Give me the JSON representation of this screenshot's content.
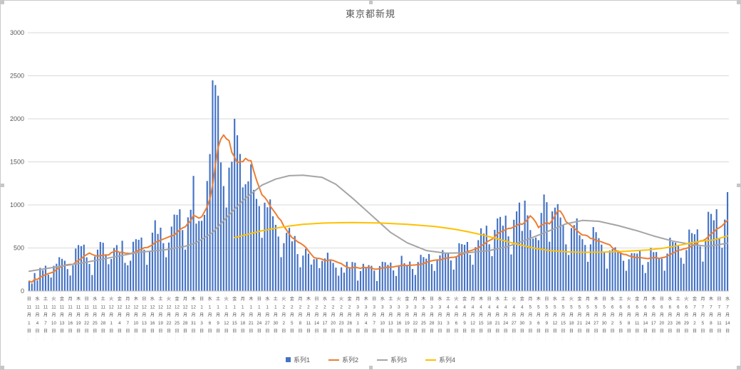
{
  "title": "東京都新規",
  "legend": [
    {
      "label": "系列1",
      "color": "#4472C4",
      "marker": "bar"
    },
    {
      "label": "系列2",
      "color": "#ED7D31",
      "marker": "line"
    },
    {
      "label": "系列3",
      "color": "#A5A5A5",
      "marker": "line"
    },
    {
      "label": "系列4",
      "color": "#FFC000",
      "marker": "line"
    }
  ],
  "chart_data": {
    "type": "bar",
    "combo": "daily bars (系列1) with three overlay lines (系列2/系列3/系列4)",
    "title": "東京都新規",
    "grid": "horizontal gridlines on",
    "legend_position": "bottom center",
    "y_axis": {
      "min": 0,
      "max": 3000,
      "step": 500,
      "tick_labels": [
        "0",
        "500",
        "1000",
        "1500",
        "2000",
        "2500",
        "3000"
      ]
    },
    "x_axis": {
      "unit": "day",
      "n_points": 256,
      "tick_interval_days": 3,
      "tick_label_format": "weekday + M月D日 (vertical stacked text)",
      "ticks": [
        [
          "日",
          "11",
          "1"
        ],
        [
          "水",
          "11",
          "4"
        ],
        [
          "土",
          "11",
          "7"
        ],
        [
          "火",
          "11",
          "10"
        ],
        [
          "金",
          "11",
          "13"
        ],
        [
          "月",
          "11",
          "16"
        ],
        [
          "木",
          "11",
          "19"
        ],
        [
          "日",
          "11",
          "22"
        ],
        [
          "水",
          "11",
          "25"
        ],
        [
          "土",
          "11",
          "28"
        ],
        [
          "火",
          "12",
          "1"
        ],
        [
          "金",
          "12",
          "4"
        ],
        [
          "月",
          "12",
          "7"
        ],
        [
          "木",
          "12",
          "10"
        ],
        [
          "日",
          "12",
          "13"
        ],
        [
          "水",
          "12",
          "16"
        ],
        [
          "土",
          "12",
          "19"
        ],
        [
          "火",
          "12",
          "22"
        ],
        [
          "金",
          "12",
          "25"
        ],
        [
          "月",
          "12",
          "28"
        ],
        [
          "木",
          "12",
          "31"
        ],
        [
          "日",
          "1",
          "3"
        ],
        [
          "水",
          "1",
          "6"
        ],
        [
          "土",
          "1",
          "9"
        ],
        [
          "火",
          "1",
          "12"
        ],
        [
          "金",
          "1",
          "15"
        ],
        [
          "月",
          "1",
          "18"
        ],
        [
          "木",
          "1",
          "21"
        ],
        [
          "日",
          "1",
          "24"
        ],
        [
          "水",
          "1",
          "27"
        ],
        [
          "土",
          "1",
          "30"
        ],
        [
          "火",
          "2",
          "2"
        ],
        [
          "金",
          "2",
          "5"
        ],
        [
          "月",
          "2",
          "8"
        ],
        [
          "木",
          "2",
          "11"
        ],
        [
          "日",
          "2",
          "14"
        ],
        [
          "水",
          "2",
          "17"
        ],
        [
          "土",
          "2",
          "20"
        ],
        [
          "火",
          "2",
          "23"
        ],
        [
          "金",
          "2",
          "26"
        ],
        [
          "月",
          "3",
          "1"
        ],
        [
          "木",
          "3",
          "4"
        ],
        [
          "日",
          "3",
          "7"
        ],
        [
          "水",
          "3",
          "10"
        ],
        [
          "土",
          "3",
          "13"
        ],
        [
          "火",
          "3",
          "16"
        ],
        [
          "金",
          "3",
          "19"
        ],
        [
          "月",
          "3",
          "22"
        ],
        [
          "木",
          "3",
          "25"
        ],
        [
          "日",
          "3",
          "28"
        ],
        [
          "水",
          "3",
          "31"
        ],
        [
          "土",
          "4",
          "3"
        ],
        [
          "火",
          "4",
          "6"
        ],
        [
          "金",
          "4",
          "9"
        ],
        [
          "月",
          "4",
          "12"
        ],
        [
          "木",
          "4",
          "15"
        ],
        [
          "日",
          "4",
          "18"
        ],
        [
          "水",
          "4",
          "21"
        ],
        [
          "土",
          "4",
          "24"
        ],
        [
          "火",
          "4",
          "27"
        ],
        [
          "金",
          "4",
          "30"
        ],
        [
          "月",
          "5",
          "3"
        ],
        [
          "木",
          "5",
          "6"
        ],
        [
          "日",
          "5",
          "9"
        ],
        [
          "水",
          "5",
          "12"
        ],
        [
          "土",
          "5",
          "15"
        ],
        [
          "火",
          "5",
          "18"
        ],
        [
          "金",
          "5",
          "21"
        ],
        [
          "月",
          "5",
          "24"
        ],
        [
          "木",
          "5",
          "27"
        ],
        [
          "日",
          "5",
          "30"
        ],
        [
          "水",
          "6",
          "2"
        ],
        [
          "土",
          "6",
          "5"
        ],
        [
          "火",
          "6",
          "8"
        ],
        [
          "金",
          "6",
          "11"
        ],
        [
          "月",
          "6",
          "14"
        ],
        [
          "木",
          "6",
          "17"
        ],
        [
          "日",
          "6",
          "20"
        ],
        [
          "水",
          "6",
          "23"
        ],
        [
          "土",
          "6",
          "26"
        ],
        [
          "火",
          "6",
          "29"
        ],
        [
          "金",
          "7",
          "2"
        ],
        [
          "月",
          "7",
          "5"
        ],
        [
          "木",
          "7",
          "8"
        ],
        [
          "日",
          "7",
          "11"
        ],
        [
          "水",
          "7",
          "14"
        ]
      ]
    },
    "series": [
      {
        "name": "系列1",
        "type": "bar",
        "color": "#4472C4",
        "values": [
          116,
          87,
          209,
          122,
          269,
          242,
          294,
          189,
          157,
          293,
          317,
          393,
          374,
          352,
          255,
          180,
          298,
          493,
          534,
          522,
          539,
          391,
          314,
          186,
          401,
          481,
          570,
          561,
          418,
          311,
          372,
          500,
          533,
          449,
          584,
          327,
          299,
          352,
          572,
          602,
          595,
          621,
          480,
          305,
          460,
          678,
          822,
          664,
          736,
          556,
          392,
          563,
          748,
          888,
          884,
          949,
          708,
          481,
          856,
          944,
          1337,
          783,
          814,
          816,
          884,
          1278,
          1591,
          2447,
          2392,
          2268,
          1494,
          1219,
          970,
          1433,
          1502,
          2001,
          1809,
          1592,
          1204,
          1240,
          1274,
          1471,
          1175,
          1070,
          986,
          618,
          1026,
          973,
          1064,
          868,
          769,
          633,
          393,
          556,
          676,
          734,
          577,
          639,
          429,
          276,
          412,
          491,
          434,
          307,
          369,
          371,
          266,
          350,
          378,
          445,
          353,
          327,
          272,
          178,
          275,
          213,
          340,
          270,
          337,
          329,
          121,
          232,
          316,
          279,
          301,
          293,
          237,
          116,
          290,
          340,
          335,
          304,
          330,
          239,
          175,
          300,
          409,
          323,
          303,
          342,
          256,
          187,
          337,
          420,
          394,
          376,
          430,
          313,
          234,
          364,
          414,
          475,
          440,
          446,
          355,
          249,
          399,
          555,
          545,
          537,
          570,
          421,
          306,
          510,
          591,
          729,
          667,
          759,
          543,
          405,
          711,
          843,
          861,
          759,
          876,
          635,
          425,
          828,
          925,
          1027,
          698,
          1050,
          879,
          708,
          609,
          621,
          591,
          907,
          1121,
          1032,
          573,
          925,
          969,
          1010,
          854,
          772,
          542,
          419,
          732,
          766,
          843,
          649,
          602,
          535,
          340,
          542,
          743,
          684,
          614,
          539,
          448,
          260,
          471,
          487,
          508,
          472,
          436,
          351,
          235,
          369,
          440,
          439,
          435,
          467,
          304,
          209,
          337,
          501,
          452,
          453,
          388,
          376,
          236,
          435,
          619,
          570,
          562,
          534,
          386,
          317,
          476,
          714,
          673,
          660,
          716,
          518,
          342,
          593,
          920,
          896,
          822,
          950,
          614,
          502,
          830,
          1149
        ]
      },
      {
        "name": "系列2",
        "type": "line",
        "color": "#ED7D31",
        "derivation": "7-day trailing moving average of 系列1 (peaks ≈1810 mid-January, second peak ≈900 mid-May, rises to ≈950 at right edge)"
      },
      {
        "name": "系列3",
        "type": "line",
        "color": "#A5A5A5",
        "control_points": [
          [
            0,
            230
          ],
          [
            10,
            280
          ],
          [
            20,
            330
          ],
          [
            30,
            390
          ],
          [
            40,
            450
          ],
          [
            50,
            480
          ],
          [
            57,
            520
          ],
          [
            61,
            560
          ],
          [
            67,
            680
          ],
          [
            72,
            850
          ],
          [
            78,
            1050
          ],
          [
            85,
            1230
          ],
          [
            90,
            1300
          ],
          [
            95,
            1340
          ],
          [
            100,
            1345
          ],
          [
            107,
            1320
          ],
          [
            112,
            1240
          ],
          [
            118,
            1080
          ],
          [
            125,
            880
          ],
          [
            132,
            680
          ],
          [
            138,
            560
          ],
          [
            145,
            470
          ],
          [
            152,
            440
          ],
          [
            160,
            445
          ],
          [
            168,
            470
          ],
          [
            175,
            520
          ],
          [
            182,
            600
          ],
          [
            190,
            700
          ],
          [
            196,
            780
          ],
          [
            202,
            820
          ],
          [
            208,
            810
          ],
          [
            215,
            760
          ],
          [
            222,
            700
          ],
          [
            228,
            640
          ],
          [
            235,
            580
          ],
          [
            242,
            540
          ],
          [
            248,
            520
          ],
          [
            255,
            555
          ]
        ]
      },
      {
        "name": "系列4",
        "type": "line",
        "color": "#FFC000",
        "control_points": [
          [
            75,
            620
          ],
          [
            80,
            660
          ],
          [
            85,
            700
          ],
          [
            90,
            730
          ],
          [
            95,
            755
          ],
          [
            100,
            775
          ],
          [
            108,
            790
          ],
          [
            118,
            795
          ],
          [
            128,
            790
          ],
          [
            138,
            775
          ],
          [
            148,
            750
          ],
          [
            155,
            720
          ],
          [
            160,
            690
          ],
          [
            165,
            655
          ],
          [
            170,
            615
          ],
          [
            175,
            570
          ],
          [
            180,
            530
          ],
          [
            185,
            495
          ],
          [
            190,
            470
          ],
          [
            196,
            455
          ],
          [
            203,
            450
          ],
          [
            210,
            452
          ],
          [
            218,
            462
          ],
          [
            226,
            478
          ],
          [
            232,
            500
          ],
          [
            238,
            535
          ],
          [
            242,
            562
          ],
          [
            246,
            582
          ],
          [
            250,
            593
          ],
          [
            255,
            640
          ]
        ]
      }
    ]
  }
}
